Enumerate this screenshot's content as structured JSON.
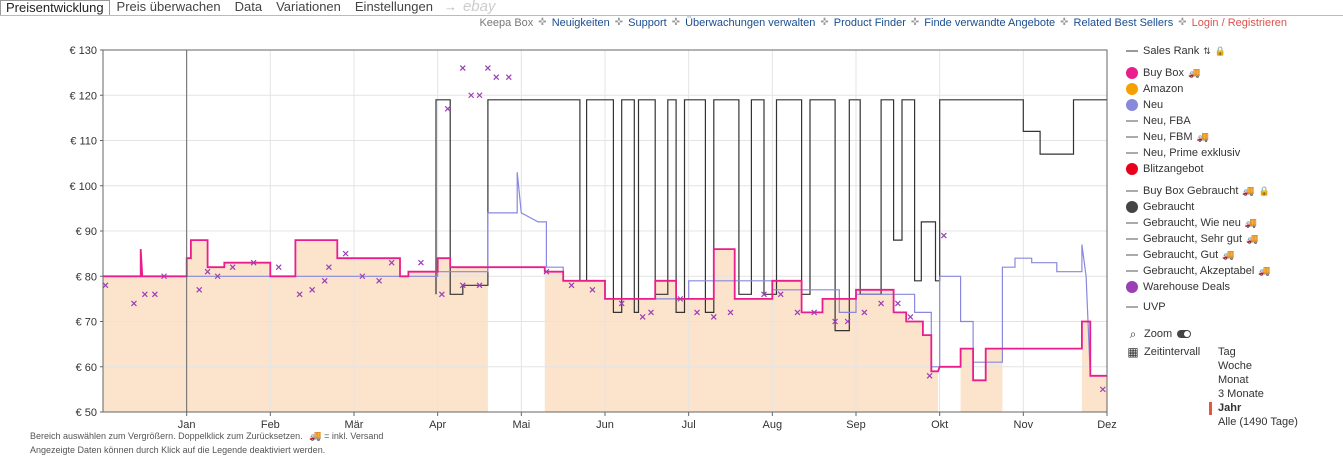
{
  "tabs": {
    "items": [
      "Preisentwicklung",
      "Preis überwachen",
      "Data",
      "Variationen",
      "Einstellungen"
    ],
    "active": 0,
    "arrow": "→",
    "ebay": "ebay"
  },
  "toplinks": {
    "items": [
      "Keepa Box",
      "Neuigkeiten",
      "Support",
      "Überwachungen verwalten",
      "Product Finder",
      "Finde verwandte Angebote",
      "Related Best Sellers",
      "Login / Registrieren"
    ],
    "separator": "✜"
  },
  "hints": {
    "line1": "Bereich auswählen zum Vergrößern. Doppelklick zum Zurücksetzen.",
    "line1_suffix": "= inkl. Versand",
    "line2": "Angezeigte Daten können durch Klick auf die Legende deaktiviert werden."
  },
  "legend": {
    "items": [
      {
        "label": "Sales Rank",
        "kind": "line",
        "color": "#999999",
        "extra": "rank"
      },
      {
        "label": "Buy Box",
        "kind": "dot",
        "color": "#e91e8c",
        "truck": true
      },
      {
        "label": "Amazon",
        "kind": "dot",
        "color": "#f5a000"
      },
      {
        "label": "Neu",
        "kind": "dot",
        "color": "#8888dd"
      },
      {
        "label": "Neu, FBA",
        "kind": "line",
        "color": "#aaaaaa"
      },
      {
        "label": "Neu, FBM",
        "kind": "line",
        "color": "#aaaaaa",
        "truck": true
      },
      {
        "label": "Neu, Prime exklusiv",
        "kind": "line",
        "color": "#aaaaaa"
      },
      {
        "label": "Blitzangebot",
        "kind": "dot",
        "color": "#e8001c"
      },
      {
        "label": "Buy Box Gebraucht",
        "kind": "line",
        "color": "#aaaaaa",
        "truck": true,
        "lock": true
      },
      {
        "label": "Gebraucht",
        "kind": "dot",
        "color": "#444444"
      },
      {
        "label": "Gebraucht, Wie neu",
        "kind": "line",
        "color": "#aaaaaa",
        "truck": true
      },
      {
        "label": "Gebraucht, Sehr gut",
        "kind": "line",
        "color": "#aaaaaa",
        "truck": true
      },
      {
        "label": "Gebraucht, Gut",
        "kind": "line",
        "color": "#aaaaaa",
        "truck": true
      },
      {
        "label": "Gebraucht, Akzeptabel",
        "kind": "line",
        "color": "#aaaaaa",
        "truck": true
      },
      {
        "label": "Warehouse Deals",
        "kind": "dot",
        "color": "#9b3fb5"
      },
      {
        "label": "UVP",
        "kind": "line",
        "color": "#aaaaaa"
      }
    ]
  },
  "controls": {
    "zoom_label": "Zoom",
    "interval_label": "Zeitintervall",
    "ranges": [
      "Tag",
      "Woche",
      "Monat",
      "3 Monate",
      "Jahr",
      "Alle (1490 Tage)"
    ],
    "active_range": "Jahr"
  },
  "chart_data": {
    "type": "line",
    "title": "Preisentwicklung",
    "currency": "€",
    "ylim": [
      50,
      130
    ],
    "yticks": [
      50,
      60,
      70,
      80,
      90,
      100,
      110,
      120,
      130
    ],
    "ytick_labels": [
      "€ 50",
      "€ 60",
      "€ 70",
      "€ 80",
      "€ 90",
      "€ 100",
      "€ 110",
      "€ 120",
      "€ 130"
    ],
    "xlim": [
      0,
      12
    ],
    "xticks": [
      1,
      2,
      3,
      4,
      5,
      6,
      7,
      8,
      9,
      10,
      11,
      12
    ],
    "xtick_labels": [
      "Jan",
      "Feb",
      "Mär",
      "Apr",
      "Mai",
      "Jun",
      "Jul",
      "Aug",
      "Sep",
      "Okt",
      "Nov",
      "Dez"
    ],
    "marker_line_x": 1.0,
    "fill_gaps": [
      [
        4.6,
        5.28
      ],
      [
        9.98,
        10.25
      ],
      [
        10.75,
        11.7
      ]
    ],
    "series": [
      {
        "name": "Gebraucht",
        "color": "#333333",
        "step": true,
        "points": [
          [
            3.98,
            76
          ],
          [
            3.98,
            119
          ],
          [
            4.15,
            119
          ],
          [
            4.15,
            76
          ],
          [
            4.3,
            76
          ],
          [
            4.3,
            78
          ],
          [
            4.6,
            78
          ],
          [
            4.6,
            119
          ],
          [
            5.7,
            119
          ],
          [
            5.7,
            79
          ],
          [
            5.78,
            79
          ],
          [
            5.78,
            119
          ],
          [
            6.1,
            119
          ],
          [
            6.1,
            72
          ],
          [
            6.2,
            72
          ],
          [
            6.2,
            119
          ],
          [
            6.35,
            119
          ],
          [
            6.35,
            72
          ],
          [
            6.4,
            72
          ],
          [
            6.4,
            119
          ],
          [
            6.6,
            119
          ],
          [
            6.6,
            76
          ],
          [
            6.75,
            76
          ],
          [
            6.75,
            119
          ],
          [
            6.85,
            119
          ],
          [
            6.85,
            72
          ],
          [
            6.95,
            72
          ],
          [
            6.95,
            119
          ],
          [
            7.2,
            119
          ],
          [
            7.2,
            72
          ],
          [
            7.3,
            72
          ],
          [
            7.3,
            119
          ],
          [
            7.6,
            119
          ],
          [
            7.6,
            76
          ],
          [
            7.75,
            76
          ],
          [
            7.75,
            119
          ],
          [
            7.9,
            119
          ],
          [
            7.9,
            76
          ],
          [
            8.05,
            76
          ],
          [
            8.05,
            119
          ],
          [
            8.35,
            119
          ],
          [
            8.35,
            76
          ],
          [
            8.45,
            76
          ],
          [
            8.45,
            119
          ],
          [
            8.75,
            119
          ],
          [
            8.75,
            68
          ],
          [
            8.92,
            68
          ],
          [
            8.92,
            119
          ],
          [
            9.05,
            119
          ],
          [
            9.05,
            76
          ],
          [
            9.3,
            76
          ],
          [
            9.3,
            119
          ],
          [
            9.45,
            119
          ],
          [
            9.45,
            88
          ],
          [
            9.55,
            88
          ],
          [
            9.55,
            119
          ],
          [
            9.7,
            119
          ],
          [
            9.7,
            79
          ],
          [
            9.78,
            79
          ],
          [
            9.78,
            92
          ],
          [
            9.95,
            92
          ],
          [
            9.95,
            79
          ],
          [
            10.0,
            79
          ],
          [
            10.0,
            119
          ],
          [
            10.2,
            119
          ],
          [
            10.2,
            119
          ],
          [
            10.4,
            119
          ],
          [
            10.4,
            119
          ],
          [
            11.0,
            119
          ],
          [
            11.0,
            112
          ],
          [
            11.2,
            112
          ],
          [
            11.2,
            107
          ],
          [
            11.6,
            107
          ],
          [
            11.6,
            119
          ],
          [
            12.0,
            119
          ]
        ]
      },
      {
        "name": "Neu",
        "color": "#8888dd",
        "step": true,
        "points": [
          [
            0.0,
            80
          ],
          [
            4.0,
            80
          ],
          [
            4.0,
            81
          ],
          [
            4.6,
            81
          ],
          [
            4.6,
            94
          ],
          [
            4.95,
            94
          ],
          [
            4.95,
            103
          ],
          [
            5.0,
            94
          ],
          [
            5.2,
            92
          ],
          [
            5.3,
            92
          ],
          [
            5.3,
            82
          ],
          [
            5.5,
            82
          ],
          [
            5.5,
            79
          ],
          [
            6.0,
            79
          ],
          [
            6.0,
            75
          ],
          [
            7.0,
            75
          ],
          [
            7.0,
            79
          ],
          [
            8.0,
            79
          ],
          [
            8.0,
            77
          ],
          [
            8.8,
            77
          ],
          [
            8.8,
            72
          ],
          [
            9.0,
            72
          ],
          [
            9.0,
            76
          ],
          [
            9.7,
            76
          ],
          [
            9.7,
            72
          ],
          [
            9.9,
            72
          ],
          [
            9.9,
            60
          ],
          [
            10.0,
            60
          ],
          [
            10.0,
            80
          ],
          [
            10.25,
            80
          ],
          [
            10.25,
            70
          ],
          [
            10.4,
            70
          ],
          [
            10.4,
            61
          ],
          [
            10.6,
            61
          ],
          [
            10.6,
            61
          ],
          [
            10.75,
            61
          ],
          [
            10.75,
            82
          ],
          [
            10.9,
            82
          ],
          [
            10.9,
            84
          ],
          [
            11.1,
            84
          ],
          [
            11.1,
            83
          ],
          [
            11.4,
            83
          ],
          [
            11.4,
            81
          ],
          [
            11.7,
            81
          ],
          [
            11.7,
            87
          ],
          [
            11.75,
            80
          ],
          [
            11.8,
            58
          ],
          [
            12.0,
            58
          ]
        ]
      },
      {
        "name": "Buy Box",
        "color": "#e91e8c",
        "step": true,
        "fill": "#fbe3cc",
        "points": [
          [
            0.0,
            80
          ],
          [
            0.45,
            80
          ],
          [
            0.45,
            86
          ],
          [
            0.47,
            80
          ],
          [
            0.9,
            80
          ],
          [
            1.0,
            80
          ],
          [
            1.0,
            84
          ],
          [
            1.05,
            84
          ],
          [
            1.05,
            88
          ],
          [
            1.25,
            88
          ],
          [
            1.25,
            82
          ],
          [
            1.45,
            82
          ],
          [
            1.45,
            83
          ],
          [
            2.0,
            83
          ],
          [
            2.0,
            80
          ],
          [
            2.3,
            80
          ],
          [
            2.3,
            88
          ],
          [
            2.8,
            88
          ],
          [
            2.8,
            84
          ],
          [
            3.55,
            84
          ],
          [
            3.55,
            80
          ],
          [
            3.65,
            80
          ],
          [
            3.65,
            81
          ],
          [
            4.0,
            81
          ],
          [
            4.0,
            84
          ],
          [
            4.15,
            84
          ],
          [
            4.15,
            82
          ],
          [
            4.6,
            82
          ],
          [
            4.6,
            82
          ],
          [
            5.28,
            82
          ],
          [
            5.28,
            81
          ],
          [
            5.5,
            81
          ],
          [
            5.5,
            79
          ],
          [
            6.0,
            79
          ],
          [
            6.0,
            75
          ],
          [
            6.6,
            75
          ],
          [
            6.6,
            79
          ],
          [
            6.85,
            79
          ],
          [
            6.85,
            75
          ],
          [
            7.3,
            75
          ],
          [
            7.3,
            86
          ],
          [
            7.55,
            86
          ],
          [
            7.55,
            75
          ],
          [
            8.0,
            75
          ],
          [
            8.0,
            79
          ],
          [
            8.35,
            79
          ],
          [
            8.35,
            72
          ],
          [
            8.6,
            72
          ],
          [
            8.6,
            75
          ],
          [
            9.0,
            75
          ],
          [
            9.0,
            77
          ],
          [
            9.45,
            77
          ],
          [
            9.45,
            72
          ],
          [
            9.6,
            72
          ],
          [
            9.6,
            70
          ],
          [
            9.8,
            70
          ],
          [
            9.8,
            67
          ],
          [
            9.9,
            67
          ],
          [
            9.9,
            59
          ],
          [
            9.98,
            59
          ],
          [
            10.0,
            60
          ],
          [
            10.25,
            60
          ],
          [
            10.25,
            64
          ],
          [
            10.4,
            64
          ],
          [
            10.4,
            57
          ],
          [
            10.55,
            57
          ],
          [
            10.55,
            64
          ],
          [
            10.75,
            64
          ],
          [
            10.75,
            64
          ],
          [
            11.7,
            64
          ],
          [
            11.7,
            70
          ],
          [
            11.8,
            70
          ],
          [
            11.8,
            58
          ],
          [
            12.0,
            58
          ]
        ]
      },
      {
        "name": "Warehouse Deals",
        "color": "#9b3fb5",
        "step": false,
        "points": [
          [
            0.03,
            78
          ],
          [
            0.37,
            74
          ],
          [
            0.5,
            76
          ],
          [
            0.62,
            76
          ],
          [
            0.73,
            80
          ],
          [
            1.15,
            77
          ],
          [
            1.25,
            81
          ],
          [
            1.37,
            80
          ],
          [
            1.55,
            82
          ],
          [
            1.8,
            83
          ],
          [
            2.1,
            82
          ],
          [
            2.35,
            76
          ],
          [
            2.5,
            77
          ],
          [
            2.65,
            79
          ],
          [
            2.7,
            82
          ],
          [
            2.9,
            85
          ],
          [
            3.1,
            80
          ],
          [
            3.3,
            79
          ],
          [
            3.45,
            83
          ],
          [
            3.8,
            83
          ],
          [
            4.05,
            76
          ],
          [
            4.3,
            78
          ],
          [
            4.5,
            78
          ],
          [
            4.12,
            117
          ],
          [
            4.3,
            126
          ],
          [
            4.4,
            120
          ],
          [
            4.5,
            120
          ],
          [
            4.6,
            126
          ],
          [
            4.7,
            124
          ],
          [
            4.85,
            124
          ],
          [
            5.3,
            81
          ],
          [
            5.6,
            78
          ],
          [
            5.85,
            77
          ],
          [
            6.2,
            74
          ],
          [
            6.45,
            71
          ],
          [
            6.55,
            72
          ],
          [
            6.9,
            75
          ],
          [
            7.1,
            72
          ],
          [
            7.3,
            71
          ],
          [
            7.5,
            72
          ],
          [
            7.9,
            76
          ],
          [
            8.1,
            76
          ],
          [
            8.3,
            72
          ],
          [
            8.5,
            72
          ],
          [
            8.75,
            70
          ],
          [
            8.9,
            70
          ],
          [
            9.1,
            72
          ],
          [
            9.3,
            74
          ],
          [
            9.5,
            74
          ],
          [
            9.65,
            71
          ],
          [
            9.88,
            58
          ],
          [
            10.05,
            89
          ],
          [
            11.95,
            55
          ]
        ]
      }
    ]
  }
}
